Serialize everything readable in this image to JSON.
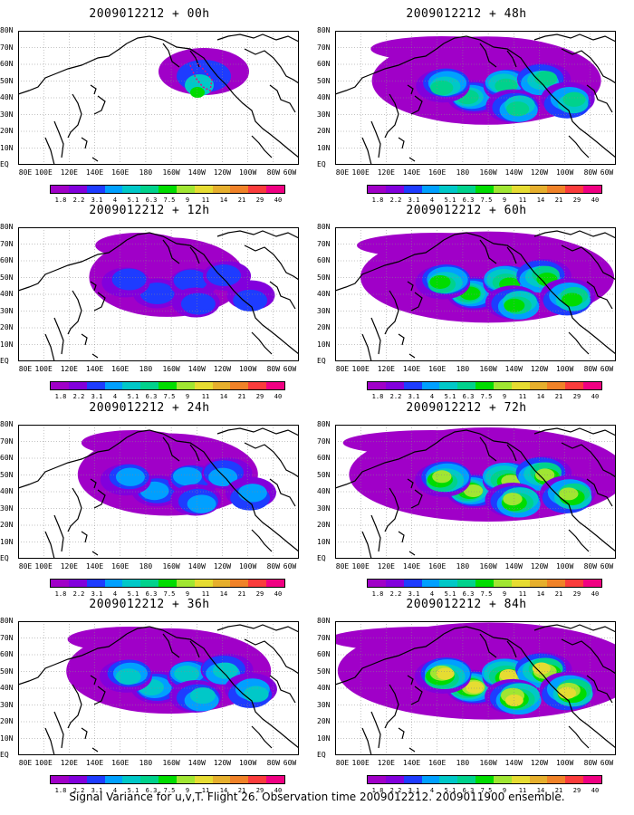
{
  "colorbar": {
    "labels": [
      "1.8",
      "2.2",
      "3.1",
      "4",
      "5.1",
      "6.3",
      "7.5",
      "9",
      "11",
      "14",
      "21",
      "29",
      "40"
    ],
    "colors": [
      "#a000c8",
      "#8200dc",
      "#1e3cff",
      "#00a0ff",
      "#00c8c8",
      "#00d28c",
      "#00dc00",
      "#a0e632",
      "#e6dc32",
      "#e6af2d",
      "#f08228",
      "#fa3c3c",
      "#f00082"
    ]
  },
  "lat_labels": [
    "80N",
    "70N",
    "60N",
    "50N",
    "40N",
    "30N",
    "20N",
    "10N",
    "EQ"
  ],
  "lon_labels": [
    "80E",
    "100E",
    "120E",
    "140E",
    "160E",
    "180",
    "160W",
    "140W",
    "120W",
    "100W",
    "80W",
    "60W"
  ],
  "panels": [
    {
      "title": "2009012212 + 00h",
      "col": 0,
      "row": 0,
      "level": 0
    },
    {
      "title": "2009012212 + 12h",
      "col": 0,
      "row": 1,
      "level": 1
    },
    {
      "title": "2009012212 + 24h",
      "col": 0,
      "row": 2,
      "level": 2
    },
    {
      "title": "2009012212 + 36h",
      "col": 0,
      "row": 3,
      "level": 3
    },
    {
      "title": "2009012212 + 48h",
      "col": 1,
      "row": 0,
      "level": 4
    },
    {
      "title": "2009012212 + 60h",
      "col": 1,
      "row": 1,
      "level": 5
    },
    {
      "title": "2009012212 + 72h",
      "col": 1,
      "row": 2,
      "level": 6
    },
    {
      "title": "2009012212 + 84h",
      "col": 1,
      "row": 3,
      "level": 7
    }
  ],
  "caption": "Signal Variance for u,v,T. Flight 26. Observation time 2009012212. 2009011900 ensemble."
}
